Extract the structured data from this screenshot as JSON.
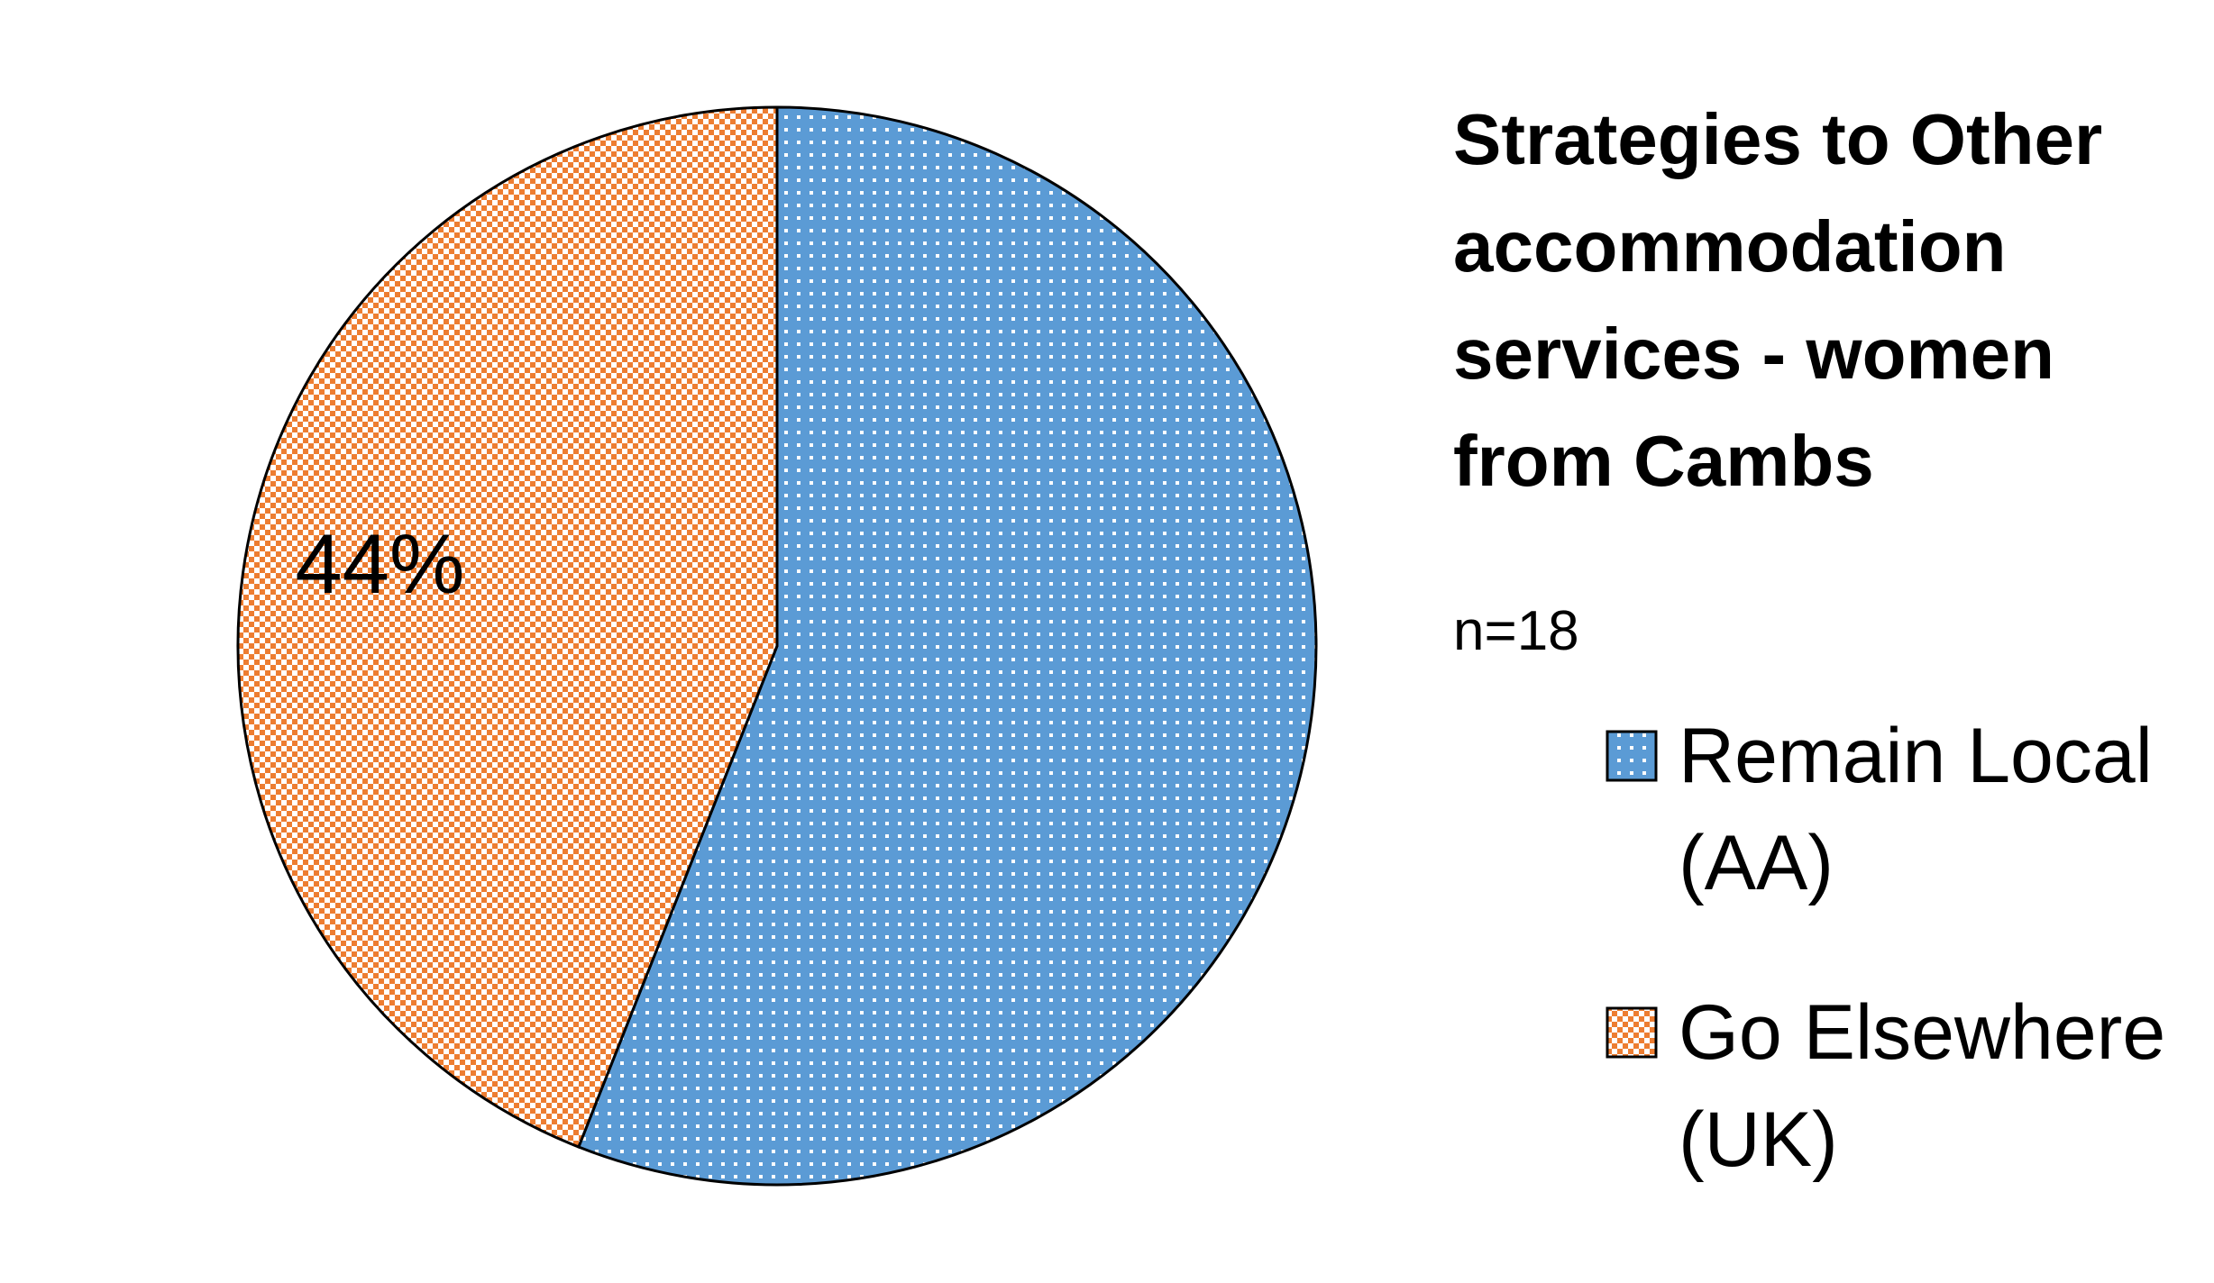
{
  "chart_data": {
    "type": "pie",
    "title": "Strategies to Other accommodation services - women from Cambs",
    "subtitle": "n=18",
    "categories": [
      "Remain Local (AA)",
      "Go Elsewhere (UK)"
    ],
    "values": [
      56,
      44
    ],
    "value_labels": [
      null,
      "44%"
    ],
    "colors": [
      "#5b9bd5",
      "#ed7d31"
    ],
    "patterns": [
      "dots",
      "checker"
    ]
  }
}
